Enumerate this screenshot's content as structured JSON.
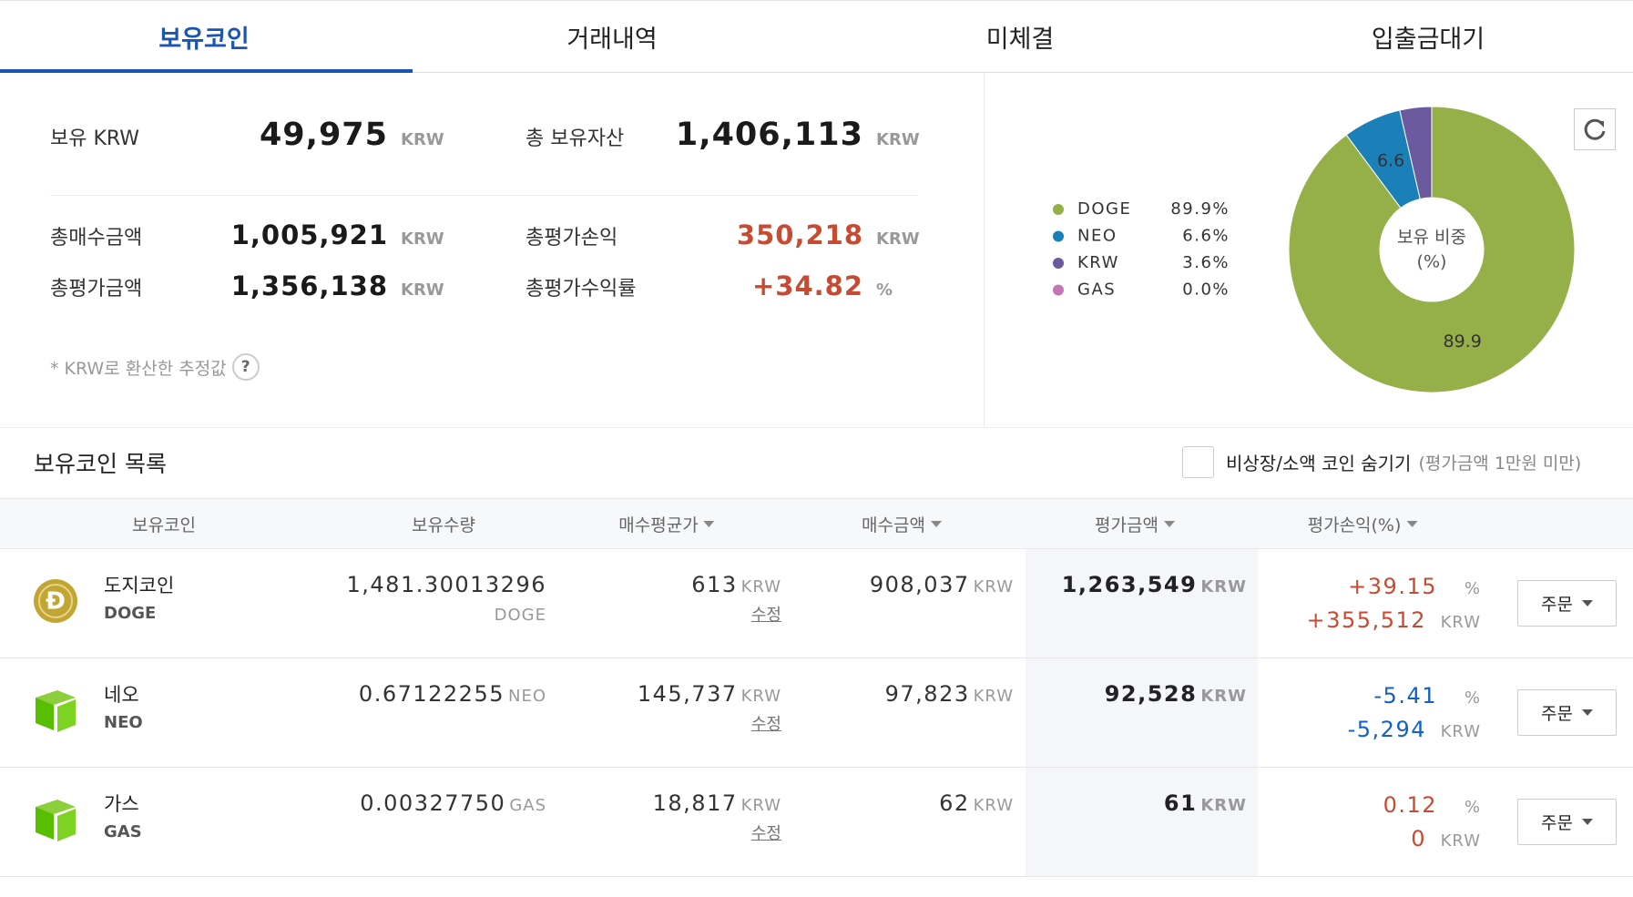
{
  "tabs": [
    "보유코인",
    "거래내역",
    "미체결",
    "입출금대기"
  ],
  "summary": {
    "items": [
      {
        "label": "보유 KRW",
        "value": "49,975",
        "unit": "KRW"
      },
      {
        "label": "총 보유자산",
        "value": "1,406,113",
        "unit": "KRW"
      },
      {
        "label": "총매수금액",
        "value": "1,005,921",
        "unit": "KRW"
      },
      {
        "label": "총평가손익",
        "value": "350,218",
        "unit": "KRW",
        "color": "#c84a31"
      },
      {
        "label": "총평가금액",
        "value": "1,356,138",
        "unit": "KRW"
      },
      {
        "label": "총평가수익률",
        "value": "+34.82",
        "unit": "%",
        "color": "#c84a31"
      }
    ],
    "note": "* KRW로 환산한 추정값",
    "help": "?"
  },
  "chart_data": {
    "type": "pie",
    "categories": [
      "DOGE",
      "NEO",
      "KRW",
      "GAS"
    ],
    "values": [
      89.9,
      6.6,
      3.6,
      0.0
    ],
    "value_labels": [
      "89.9%",
      "6.6%",
      "3.6%",
      "0.0%"
    ],
    "colors": [
      "#95b049",
      "#1b80b8",
      "#6b5a9e",
      "#c574b5"
    ],
    "center_text": [
      "보유 비중",
      "(%)"
    ]
  },
  "list": {
    "title": "보유코인 목록",
    "filter_label": "비상장/소액 코인 숨기기",
    "filter_hint": "(평가금액 1만원 미만)",
    "columns": [
      "보유코인",
      "보유수량",
      "매수평균가",
      "매수금액",
      "평가금액",
      "평가손익(%)"
    ],
    "rows": [
      {
        "icon": "Đ",
        "name": "도지코인",
        "symbol": "DOGE",
        "quantity": "1,481.30013296",
        "quantity_unit": "DOGE",
        "avg_price": "613",
        "avg_price_unit": "KRW",
        "edit": "수정",
        "buy_amount": "908,037",
        "buy_amount_unit": "KRW",
        "eval_amount": "1,263,549",
        "eval_amount_unit": "KRW",
        "profit_rate": "+39.15",
        "profit_rate_unit": "%",
        "profit": "+355,512",
        "profit_unit": "KRW",
        "profit_color": "#c84a31",
        "order": "주문"
      },
      {
        "name": "네오",
        "symbol": "NEO",
        "quantity": "0.67122255",
        "quantity_unit": "NEO",
        "avg_price": "145,737",
        "avg_price_unit": "KRW",
        "edit": "수정",
        "buy_amount": "97,823",
        "buy_amount_unit": "KRW",
        "eval_amount": "92,528",
        "eval_amount_unit": "KRW",
        "profit_rate": "-5.41",
        "profit_rate_unit": "%",
        "profit": "-5,294",
        "profit_unit": "KRW",
        "profit_color": "#1261c4",
        "order": "주문"
      },
      {
        "name": "가스",
        "symbol": "GAS",
        "quantity": "0.00327750",
        "quantity_unit": "GAS",
        "avg_price": "18,817",
        "avg_price_unit": "KRW",
        "edit": "수정",
        "buy_amount": "62",
        "buy_amount_unit": "KRW",
        "eval_amount": "61",
        "eval_amount_unit": "KRW",
        "profit_rate": "0.12",
        "profit_rate_unit": "%",
        "profit": "0",
        "profit_unit": "KRW",
        "profit_color": "#c84a31",
        "order": "주문"
      }
    ]
  }
}
